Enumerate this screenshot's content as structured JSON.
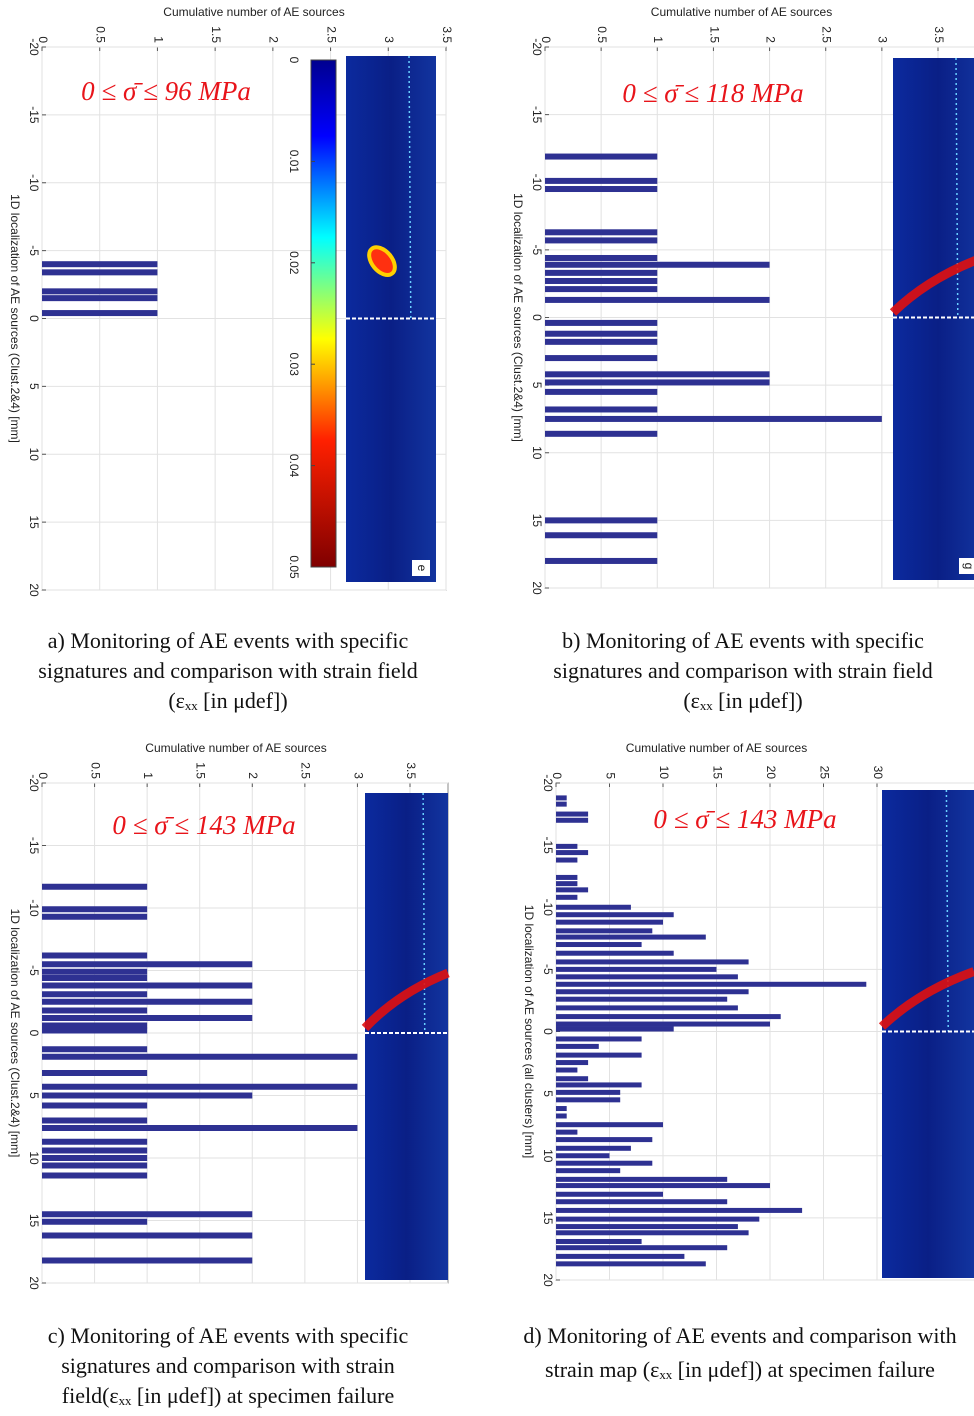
{
  "chart_data": [
    {
      "type": "bar",
      "orientation": "horizontal",
      "title": "Cumulative number of AE sources",
      "ylabel": "1D localization of AE sources (Clust.2&4) [mm]",
      "annotation": "0 ≤ σ̄ ≤ 96 MPa",
      "color": "#2e3192",
      "grid": true,
      "positions": [
        -4,
        -3.4,
        -2,
        -1.5,
        -0.4
      ],
      "values": [
        1,
        1,
        1,
        1,
        1
      ],
      "xlim": [
        0,
        3.5
      ],
      "xticks": [
        0,
        0.5,
        1,
        1.5,
        2,
        2.5,
        3,
        3.5
      ],
      "ylim": [
        -20,
        20
      ],
      "yticks": [
        -20,
        -15,
        -10,
        -5,
        0,
        5,
        10,
        15,
        20
      ],
      "colorbar": {
        "range": [
          0,
          0.05
        ],
        "ticks": [
          0,
          0.01,
          0.02,
          0.03,
          0.04,
          0.05
        ]
      },
      "image_label": "e",
      "caption": [
        "a) Monitoring of AE events with specific",
        "signatures and comparison with strain field",
        "(εₓₓ [in μdef])"
      ]
    },
    {
      "type": "bar",
      "orientation": "horizontal",
      "title": "Cumulative number of AE sources",
      "ylabel": "1D localization of AE sources (Clust.2&4) [mm]",
      "annotation": "0 ≤ σ̄ ≤ 118 MPa",
      "color": "#2e3192",
      "grid": true,
      "positions": [
        -11.9,
        -10.1,
        -9.5,
        -6.3,
        -5.7,
        -4.4,
        -3.9,
        -3.3,
        -2.7,
        -2.1,
        -1.3,
        0.4,
        1.2,
        1.8,
        3.0,
        4.2,
        4.8,
        5.5,
        6.8,
        7.5,
        8.6,
        15.0,
        16.1,
        18.0
      ],
      "values": [
        1,
        1,
        1,
        1,
        1,
        1,
        2,
        1,
        1,
        1,
        2,
        1,
        1,
        1,
        1,
        2,
        2,
        1,
        1,
        3,
        1,
        1,
        1,
        1
      ],
      "xlim": [
        0,
        3.5
      ],
      "xticks": [
        0,
        0.5,
        1,
        1.5,
        2,
        2.5,
        3,
        3.5
      ],
      "ylim": [
        -20,
        20
      ],
      "yticks": [
        -20,
        -15,
        -10,
        -5,
        0,
        5,
        10,
        15,
        20
      ],
      "image_label": "g",
      "caption": [
        "b) Monitoring of AE events with specific",
        "signatures and comparison with strain field",
        "(εₓₓ [in μdef])"
      ]
    },
    {
      "type": "bar",
      "orientation": "horizontal",
      "title": "Cumulative number of AE sources",
      "ylabel": "1D localization of AE sources (Clust.2&4) [mm]",
      "annotation": "0 ≤ σ̄ ≤ 143 MPa",
      "color": "#2e3192",
      "grid": true,
      "positions": [
        -11.7,
        -9.9,
        -9.3,
        -6.2,
        -5.5,
        -4.9,
        -4.4,
        -3.8,
        -3.1,
        -2.5,
        -1.8,
        -1.2,
        -0.6,
        -0.2,
        1.3,
        1.9,
        3.2,
        4.3,
        5.0,
        5.8,
        7.0,
        7.6,
        8.7,
        9.4,
        10.0,
        10.6,
        11.4,
        14.5,
        15.1,
        16.2,
        18.2
      ],
      "values": [
        1,
        1,
        1,
        1,
        2,
        1,
        1,
        2,
        1,
        2,
        1,
        2,
        1,
        1,
        1,
        3,
        1,
        3,
        2,
        1,
        1,
        3,
        1,
        1,
        1,
        1,
        1,
        2,
        1,
        2,
        2
      ],
      "xlim": [
        0,
        3.5
      ],
      "xticks": [
        0,
        0.5,
        1,
        1.5,
        2,
        2.5,
        3,
        3.5
      ],
      "ylim": [
        -20,
        20
      ],
      "yticks": [
        -20,
        -15,
        -10,
        -5,
        0,
        5,
        10,
        15,
        20
      ],
      "caption": [
        "c) Monitoring of AE events with specific",
        "signatures and comparison with strain",
        "field(εₓₓ [in μdef])   at specimen failure"
      ]
    },
    {
      "type": "bar",
      "orientation": "horizontal",
      "title": "Cumulative number of AE sources",
      "ylabel": "1D localization of AE sources (all clusters) [mm]",
      "annotation": "0 ≤ σ̄ ≤ 143 MPa",
      "color": "#2e3192",
      "grid": true,
      "positions": [
        -18.8,
        -18.3,
        -17.5,
        -17.0,
        -14.9,
        -14.4,
        -13.8,
        -12.4,
        -11.9,
        -11.4,
        -10.8,
        -10.0,
        -9.4,
        -8.8,
        -8.1,
        -7.6,
        -7.0,
        -6.3,
        -5.6,
        -5.0,
        -4.4,
        -3.8,
        -3.2,
        -2.6,
        -1.9,
        -1.2,
        -0.6,
        -0.2,
        0.6,
        1.2,
        1.9,
        2.5,
        3.1,
        3.8,
        4.3,
        4.9,
        5.5,
        6.2,
        6.8,
        7.5,
        8.1,
        8.7,
        9.4,
        10.0,
        10.6,
        11.2,
        11.9,
        12.4,
        13.1,
        13.7,
        14.4,
        15.1,
        15.7,
        16.2,
        16.9,
        17.4,
        18.1,
        18.7
      ],
      "values": [
        1,
        1,
        3,
        3,
        2,
        3,
        2,
        2,
        2,
        3,
        2,
        7,
        11,
        10,
        9,
        14,
        8,
        11,
        18,
        15,
        17,
        29,
        18,
        16,
        17,
        21,
        20,
        11,
        8,
        4,
        8,
        3,
        2,
        3,
        8,
        6,
        6,
        1,
        1,
        10,
        2,
        9,
        7,
        5,
        9,
        6,
        16,
        20,
        10,
        16,
        23,
        19,
        17,
        18,
        8,
        16,
        12,
        14
      ],
      "xlim": [
        0,
        30
      ],
      "xticks": [
        0,
        5,
        10,
        15,
        20,
        25,
        30
      ],
      "ylim": [
        -20,
        20
      ],
      "yticks": [
        -20,
        -15,
        -10,
        -5,
        0,
        5,
        10,
        15,
        20
      ],
      "caption": [
        "d) Monitoring of AE events and comparison with",
        "strain map (εₓₓ [in μdef])   at specimen failure"
      ]
    }
  ]
}
